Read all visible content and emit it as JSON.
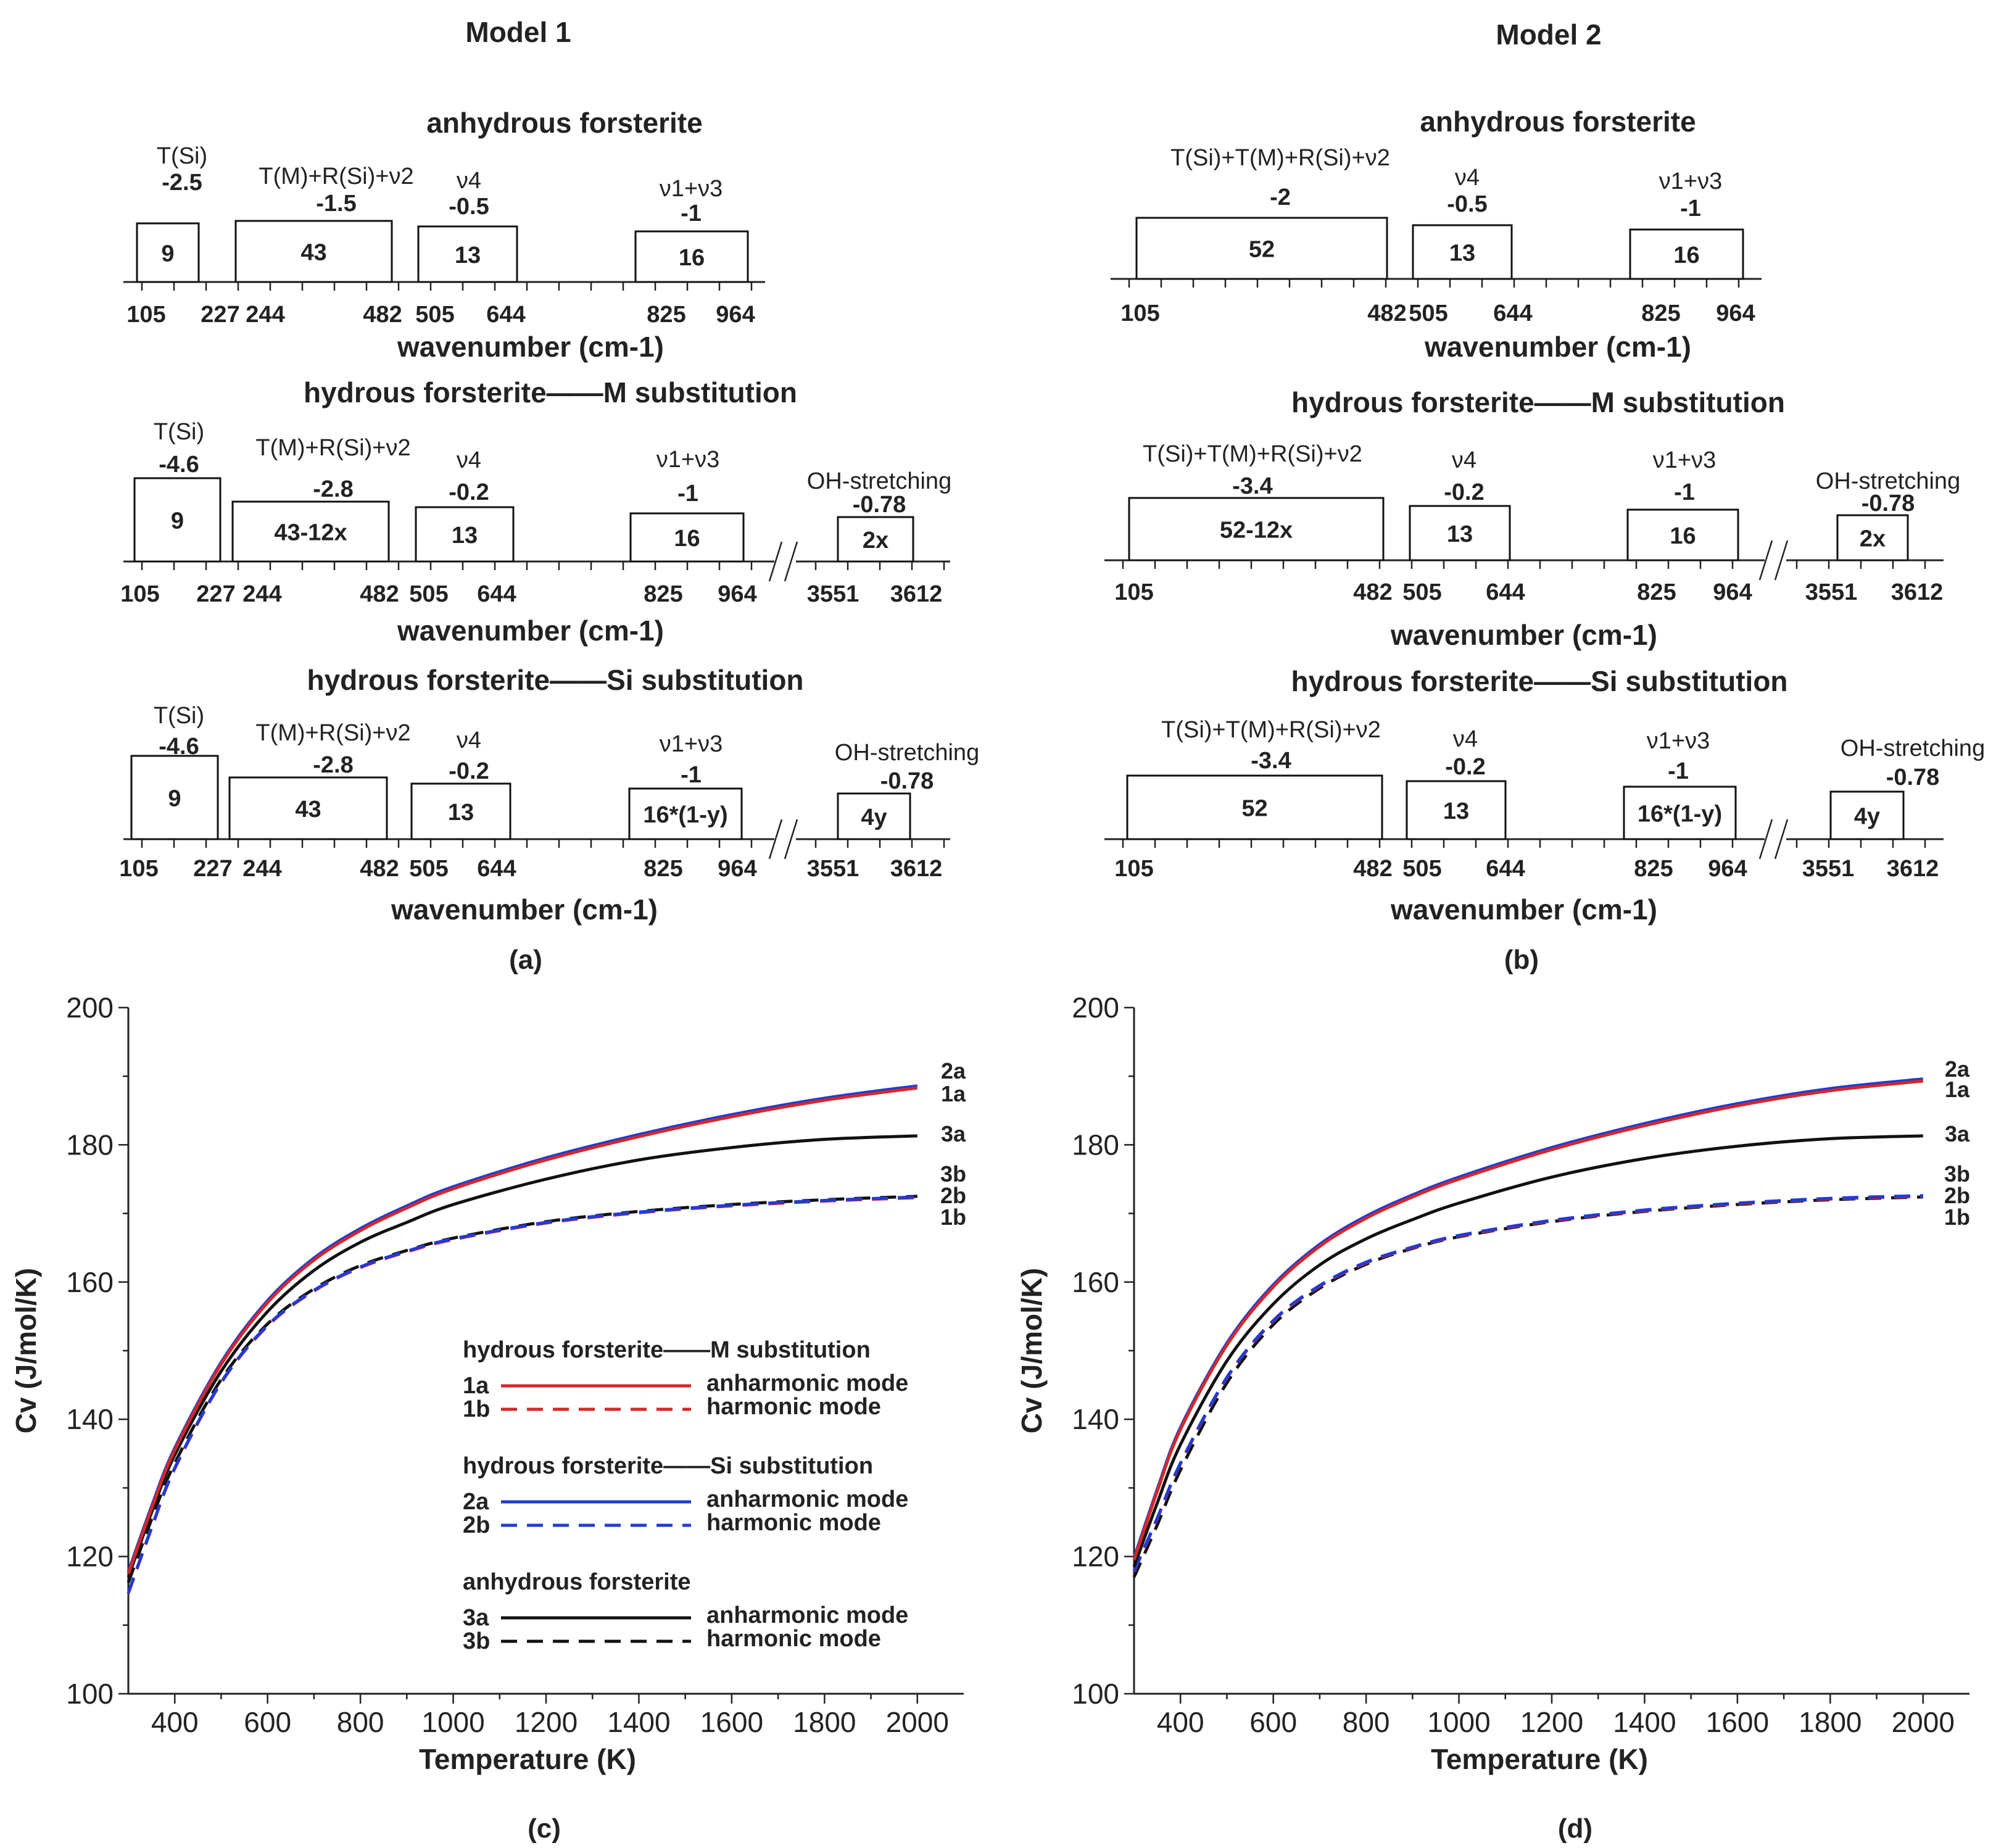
{
  "columns": [
    {
      "title": "Model 1",
      "panel_label": "(a)"
    },
    {
      "title": "Model 2",
      "panel_label": "(b)"
    }
  ],
  "spectra_panels": [
    {
      "col": 0,
      "row": 0,
      "title": "anhydrous forsterite",
      "modes": [
        {
          "name": "T(Si)",
          "value": "-2.5",
          "count": "9"
        },
        {
          "name": "T(M)+R(Si)+ν2",
          "value": "-1.5",
          "count": "43"
        },
        {
          "name": "ν4",
          "value": "-0.5",
          "count": "13"
        },
        {
          "name": "ν1+ν3",
          "value": "-1",
          "count": "16"
        }
      ],
      "ticks": [
        "105",
        "227",
        "244",
        "482",
        "505",
        "644",
        "825",
        "964"
      ],
      "xlabel": "wavenumber (cm-1)"
    },
    {
      "col": 0,
      "row": 1,
      "title": "hydrous forsterite——M substitution",
      "modes": [
        {
          "name": "T(Si)",
          "value": "-4.6",
          "count": "9"
        },
        {
          "name": "T(M)+R(Si)+ν2",
          "value": "-2.8",
          "count": "43-12x"
        },
        {
          "name": "ν4",
          "value": "-0.2",
          "count": "13"
        },
        {
          "name": "ν1+ν3",
          "value": "-1",
          "count": "16"
        },
        {
          "name": "OH-stretching",
          "value": "-0.78",
          "count": "2x"
        }
      ],
      "ticks": [
        "105",
        "227",
        "244",
        "482",
        "505",
        "644",
        "825",
        "964",
        "3551",
        "3612"
      ],
      "xlabel": "wavenumber (cm-1)"
    },
    {
      "col": 0,
      "row": 2,
      "title": "hydrous forsterite——Si substitution",
      "modes": [
        {
          "name": "T(Si)",
          "value": "-4.6",
          "count": "9"
        },
        {
          "name": "T(M)+R(Si)+ν2",
          "value": "-2.8",
          "count": "43"
        },
        {
          "name": "ν4",
          "value": "-0.2",
          "count": "13"
        },
        {
          "name": "ν1+ν3",
          "value": "-1",
          "count": "16*(1-y)"
        },
        {
          "name": "OH-stretching",
          "value": "-0.78",
          "count": "4y"
        }
      ],
      "ticks": [
        "105",
        "227",
        "244",
        "482",
        "505",
        "644",
        "825",
        "964",
        "3551",
        "3612"
      ],
      "xlabel": "wavenumber (cm-1)"
    },
    {
      "col": 1,
      "row": 0,
      "title": "anhydrous forsterite",
      "modes": [
        {
          "name": "T(Si)+T(M)+R(Si)+ν2",
          "value": "-2",
          "count": "52"
        },
        {
          "name": "ν4",
          "value": "-0.5",
          "count": "13"
        },
        {
          "name": "ν1+ν3",
          "value": "-1",
          "count": "16"
        }
      ],
      "ticks": [
        "105",
        "482",
        "505",
        "644",
        "825",
        "964"
      ],
      "xlabel": "wavenumber (cm-1)"
    },
    {
      "col": 1,
      "row": 1,
      "title": "hydrous forsterite——M substitution",
      "modes": [
        {
          "name": "T(Si)+T(M)+R(Si)+ν2",
          "value": "-3.4",
          "count": "52-12x"
        },
        {
          "name": "ν4",
          "value": "-0.2",
          "count": "13"
        },
        {
          "name": "ν1+ν3",
          "value": "-1",
          "count": "16"
        },
        {
          "name": "OH-stretching",
          "value": "-0.78",
          "count": "2x"
        }
      ],
      "ticks": [
        "105",
        "482",
        "505",
        "644",
        "825",
        "964",
        "3551",
        "3612"
      ],
      "xlabel": "wavenumber (cm-1)"
    },
    {
      "col": 1,
      "row": 2,
      "title": "hydrous forsterite——Si substitution",
      "modes": [
        {
          "name": "T(Si)+T(M)+R(Si)+ν2",
          "value": "-3.4",
          "count": "52"
        },
        {
          "name": "ν4",
          "value": "-0.2",
          "count": "13"
        },
        {
          "name": "ν1+ν3",
          "value": "-1",
          "count": "16*(1-y)"
        },
        {
          "name": "OH-stretching",
          "value": "-0.78",
          "count": "4y"
        }
      ],
      "ticks": [
        "105",
        "482",
        "505",
        "644",
        "825",
        "964",
        "3551",
        "3612"
      ],
      "xlabel": "wavenumber (cm-1)"
    }
  ],
  "chart_data": [
    {
      "type": "line",
      "panel_label": "(c)",
      "xlabel": "Temperature (K)",
      "ylabel": "Cv (J/mol/K)",
      "xlim": [
        300,
        2100
      ],
      "ylim": [
        100,
        200
      ],
      "xticks": [
        400,
        600,
        800,
        1000,
        1200,
        1400,
        1600,
        1800,
        2000
      ],
      "yticks": [
        100,
        120,
        140,
        160,
        180,
        200
      ],
      "x": [
        300,
        350,
        400,
        500,
        600,
        700,
        800,
        900,
        1000,
        1200,
        1400,
        1600,
        1800,
        2000
      ],
      "series": [
        {
          "name": "1a",
          "color": "#d62728",
          "dash": false,
          "values": [
            117.5,
            127,
            135.5,
            148,
            157,
            163.2,
            167.5,
            170.8,
            173.6,
            177.8,
            181.2,
            184.1,
            186.5,
            188.3
          ]
        },
        {
          "name": "2a",
          "color": "#1f3bd6",
          "dash": false,
          "values": [
            117.8,
            127.3,
            135.8,
            148.3,
            157.3,
            163.5,
            167.8,
            171.1,
            173.9,
            178.1,
            181.5,
            184.4,
            186.8,
            188.6
          ]
        },
        {
          "name": "3a",
          "color": "#111111",
          "dash": false,
          "values": [
            117,
            126.4,
            134.8,
            147,
            155.7,
            161.7,
            165.8,
            168.7,
            171.3,
            175,
            177.8,
            179.6,
            180.8,
            181.3
          ]
        },
        {
          "name": "1b",
          "color": "#d62728",
          "dash": true,
          "values": [
            114.6,
            124.1,
            132.8,
            145.3,
            153.6,
            158.7,
            162.1,
            164.4,
            166.2,
            168.6,
            170.1,
            171.1,
            171.8,
            172.3
          ]
        },
        {
          "name": "2b",
          "color": "#1f3bd6",
          "dash": true,
          "values": [
            114.7,
            124.2,
            132.9,
            145.4,
            153.7,
            158.8,
            162.2,
            164.5,
            166.3,
            168.7,
            170.2,
            171.2,
            171.9,
            172.4
          ]
        },
        {
          "name": "3b",
          "color": "#111111",
          "dash": true,
          "values": [
            116.2,
            125.4,
            133.6,
            145.8,
            153.9,
            159,
            162.4,
            164.6,
            166.4,
            168.8,
            170.3,
            171.3,
            172,
            172.5
          ]
        }
      ],
      "curve_tags": [
        "2a",
        "1a",
        "3a",
        "3b",
        "2b",
        "1b"
      ],
      "legend": {
        "placement": "lower-right",
        "groups": [
          {
            "title": "hydrous forsterite——M substitution",
            "entries": [
              {
                "tag": "1a",
                "color": "#d62728",
                "dash": false,
                "text": "anharmonic mode"
              },
              {
                "tag": "1b",
                "color": "#d62728",
                "dash": true,
                "text": "harmonic mode"
              }
            ]
          },
          {
            "title": "hydrous forsterite——Si substitution",
            "entries": [
              {
                "tag": "2a",
                "color": "#1f3bd6",
                "dash": false,
                "text": "anharmonic mode"
              },
              {
                "tag": "2b",
                "color": "#1f3bd6",
                "dash": true,
                "text": "harmonic mode"
              }
            ]
          },
          {
            "title": "anhydrous forsterite",
            "entries": [
              {
                "tag": "3a",
                "color": "#111111",
                "dash": false,
                "text": "anharmonic mode"
              },
              {
                "tag": "3b",
                "color": "#111111",
                "dash": true,
                "text": "harmonic mode"
              }
            ]
          }
        ]
      }
    },
    {
      "type": "line",
      "panel_label": "(d)",
      "xlabel": "Temperature (K)",
      "ylabel": "Cv (J/mol/K)",
      "xlim": [
        300,
        2100
      ],
      "ylim": [
        100,
        200
      ],
      "xticks": [
        400,
        600,
        800,
        1000,
        1200,
        1400,
        1600,
        1800,
        2000
      ],
      "yticks": [
        100,
        120,
        140,
        160,
        180,
        200
      ],
      "x": [
        300,
        350,
        400,
        500,
        600,
        700,
        800,
        900,
        1000,
        1200,
        1400,
        1600,
        1800,
        2000
      ],
      "series": [
        {
          "name": "1a",
          "color": "#d62728",
          "dash": false,
          "values": [
            119.5,
            129.5,
            138.5,
            150.8,
            159.3,
            165.2,
            169.3,
            172.4,
            175,
            179.3,
            182.8,
            185.7,
            187.9,
            189.3
          ]
        },
        {
          "name": "2a",
          "color": "#1f3bd6",
          "dash": false,
          "values": [
            119.8,
            129.8,
            138.8,
            151.1,
            159.6,
            165.5,
            169.6,
            172.7,
            175.3,
            179.6,
            183.1,
            186,
            188.2,
            189.6
          ]
        },
        {
          "name": "3a",
          "color": "#111111",
          "dash": false,
          "values": [
            118.5,
            127.8,
            136.3,
            148.5,
            156.8,
            162.5,
            166.3,
            169.1,
            171.5,
            175.3,
            178,
            179.8,
            180.9,
            181.3
          ]
        },
        {
          "name": "1b",
          "color": "#d62728",
          "dash": true,
          "values": [
            117.8,
            125.5,
            133.5,
            146,
            154.3,
            159.4,
            162.8,
            165,
            166.7,
            168.9,
            170.4,
            171.4,
            172.1,
            172.5
          ]
        },
        {
          "name": "2b",
          "color": "#1f3bd6",
          "dash": true,
          "values": [
            117.9,
            125.6,
            133.6,
            146.1,
            154.4,
            159.5,
            162.9,
            165.1,
            166.8,
            169,
            170.5,
            171.5,
            172.2,
            172.6
          ]
        },
        {
          "name": "3b",
          "color": "#111111",
          "dash": true,
          "values": [
            117,
            124.6,
            132.6,
            145.3,
            153.8,
            159.1,
            162.6,
            164.9,
            166.6,
            168.8,
            170.3,
            171.3,
            172,
            172.4
          ]
        }
      ],
      "curve_tags": [
        "2a",
        "1a",
        "3a",
        "3b",
        "2b",
        "1b"
      ]
    }
  ]
}
